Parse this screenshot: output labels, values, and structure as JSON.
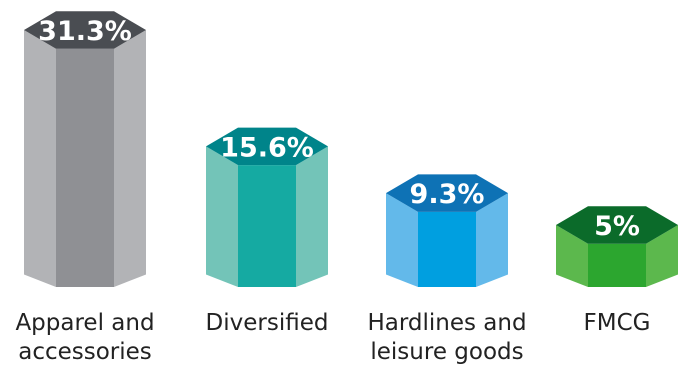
{
  "chart_data": {
    "type": "bar",
    "categories": [
      [
        "Apparel and",
        "accessories"
      ],
      [
        "Diversified"
      ],
      [
        "Hardlines and",
        "leisure goods"
      ],
      [
        "FMCG"
      ]
    ],
    "values": [
      31.3,
      15.6,
      9.3,
      5
    ],
    "value_labels": [
      "31.3%",
      "15.6%",
      "9.3%",
      "5%"
    ],
    "ylim": [
      0,
      31.3
    ],
    "grid": false,
    "legend": "none",
    "colors": [
      {
        "cap": "#4a4d52",
        "front": "#8f9094",
        "side": "#b2b3b6"
      },
      {
        "cap": "#00848a",
        "front": "#15aaa2",
        "side": "#73c4b8"
      },
      {
        "cap": "#0e72b5",
        "front": "#009fe0",
        "side": "#63b9ea"
      },
      {
        "cap": "#0b6b2a",
        "front": "#2ca62f",
        "side": "#5cb84d"
      }
    ]
  }
}
